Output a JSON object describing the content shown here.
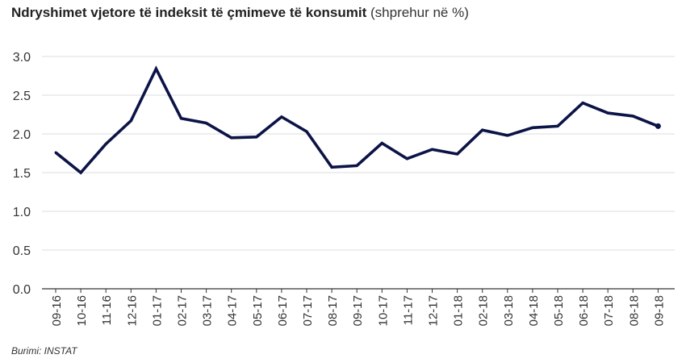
{
  "chart_data": {
    "type": "line",
    "title": "Ndryshimet vjetore të indeksit të çmimeve të konsumit",
    "subtitle": "(shprehur në %)",
    "categories": [
      "09-16",
      "10-16",
      "11-16",
      "12-16",
      "01-17",
      "02-17",
      "03-17",
      "04-17",
      "05-17",
      "06-17",
      "07-17",
      "08-17",
      "09-17",
      "10-17",
      "11-17",
      "12-17",
      "01-18",
      "02-18",
      "03-18",
      "04-18",
      "05-18",
      "06-18",
      "07-18",
      "08-18",
      "09-18"
    ],
    "series": [
      {
        "values": [
          1.76,
          1.5,
          1.87,
          2.17,
          2.84,
          2.2,
          2.14,
          1.95,
          1.96,
          2.22,
          2.03,
          1.57,
          1.59,
          1.88,
          1.68,
          1.8,
          1.74,
          2.05,
          1.98,
          2.08,
          2.1,
          2.4,
          2.27,
          2.23,
          2.1
        ]
      }
    ],
    "yticks": [
      "0.0",
      "0.5",
      "1.0",
      "1.5",
      "2.0",
      "2.5",
      "3.0"
    ],
    "ylim": [
      0,
      3.0
    ],
    "grid": true,
    "legend": "none",
    "line_color": "#0c1447",
    "source": "Burimi: INSTAT"
  }
}
